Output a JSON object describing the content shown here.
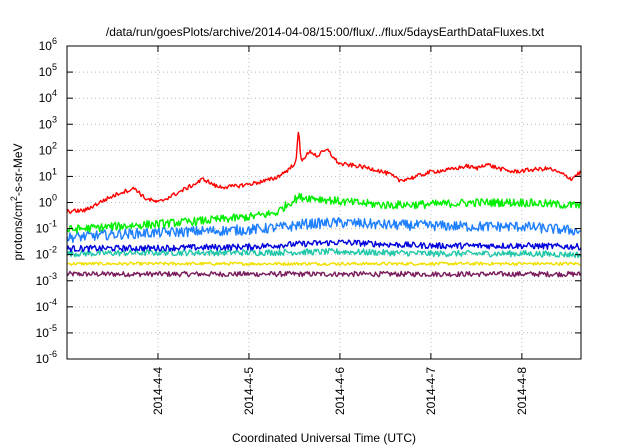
{
  "chart_data": {
    "type": "line",
    "title": "/data/run/goesPlots/archive/2014-04-08/15:00/flux/../flux/5daysEarthDataFluxes.txt",
    "xlabel": "Coordinated Universal Time (UTC)",
    "ylabel_parts": {
      "a": "protons/cm",
      "sup": "2",
      "b": "-s-sr-MeV"
    },
    "y_scale": "log",
    "ylim": [
      1e-06,
      1000000.0
    ],
    "y_ticks": [
      {
        "value": 1e-06,
        "base": "10",
        "exp": "-6"
      },
      {
        "value": 1e-05,
        "base": "10",
        "exp": "-5"
      },
      {
        "value": 0.0001,
        "base": "10",
        "exp": "-4"
      },
      {
        "value": 0.001,
        "base": "10",
        "exp": "-3"
      },
      {
        "value": 0.01,
        "base": "10",
        "exp": "-2"
      },
      {
        "value": 0.1,
        "base": "10",
        "exp": "-1"
      },
      {
        "value": 1.0,
        "base": "10",
        "exp": "0"
      },
      {
        "value": 10.0,
        "base": "10",
        "exp": "1"
      },
      {
        "value": 100.0,
        "base": "10",
        "exp": "2"
      },
      {
        "value": 1000.0,
        "base": "10",
        "exp": "3"
      },
      {
        "value": 10000.0,
        "base": "10",
        "exp": "4"
      },
      {
        "value": 100000.0,
        "base": "10",
        "exp": "5"
      },
      {
        "value": 1000000.0,
        "base": "10",
        "exp": "6"
      }
    ],
    "x_domain_days": [
      3.0,
      8.65
    ],
    "x_ticks": [
      {
        "day": 4,
        "label": "2014-4-4"
      },
      {
        "day": 5,
        "label": "2014-4-5"
      },
      {
        "day": 6,
        "label": "2014-4-6"
      },
      {
        "day": 7,
        "label": "2014-4-7"
      },
      {
        "day": 8,
        "label": "2014-4-8"
      }
    ],
    "grid": true,
    "series": [
      {
        "color": "#ff0000",
        "noise": 0.08,
        "points": [
          [
            3.0,
            0.45
          ],
          [
            3.2,
            0.5
          ],
          [
            3.4,
            1.2
          ],
          [
            3.6,
            2.5
          ],
          [
            3.75,
            3.5
          ],
          [
            3.85,
            1.5
          ],
          [
            4.0,
            1.0
          ],
          [
            4.2,
            2.2
          ],
          [
            4.4,
            5.0
          ],
          [
            4.5,
            8.0
          ],
          [
            4.65,
            4.0
          ],
          [
            4.8,
            4.0
          ],
          [
            5.0,
            5.0
          ],
          [
            5.2,
            7.0
          ],
          [
            5.3,
            9.0
          ],
          [
            5.45,
            20.0
          ],
          [
            5.52,
            40.0
          ],
          [
            5.545,
            700.0
          ],
          [
            5.57,
            40.0
          ],
          [
            5.62,
            60.0
          ],
          [
            5.68,
            90.0
          ],
          [
            5.75,
            60.0
          ],
          [
            5.82,
            90.0
          ],
          [
            5.88,
            100.0
          ],
          [
            5.93,
            50.0
          ],
          [
            6.0,
            30.0
          ],
          [
            6.2,
            25.0
          ],
          [
            6.4,
            18.0
          ],
          [
            6.55,
            12.0
          ],
          [
            6.65,
            7.0
          ],
          [
            6.8,
            9.0
          ],
          [
            7.0,
            15.0
          ],
          [
            7.2,
            18.0
          ],
          [
            7.4,
            25.0
          ],
          [
            7.5,
            20.0
          ],
          [
            7.6,
            30.0
          ],
          [
            7.75,
            20.0
          ],
          [
            7.9,
            15.0
          ],
          [
            8.1,
            18.0
          ],
          [
            8.3,
            20.0
          ],
          [
            8.45,
            12.0
          ],
          [
            8.55,
            8.0
          ],
          [
            8.6,
            12.0
          ],
          [
            8.65,
            14.0
          ]
        ]
      },
      {
        "color": "#00ee00",
        "noise": 0.16,
        "points": [
          [
            3.0,
            0.09
          ],
          [
            3.5,
            0.12
          ],
          [
            4.0,
            0.15
          ],
          [
            4.5,
            0.2
          ],
          [
            5.0,
            0.28
          ],
          [
            5.3,
            0.4
          ],
          [
            5.45,
            1.0
          ],
          [
            5.55,
            1.6
          ],
          [
            5.7,
            1.5
          ],
          [
            6.0,
            1.1
          ],
          [
            6.5,
            0.8
          ],
          [
            7.0,
            0.85
          ],
          [
            7.5,
            1.0
          ],
          [
            8.0,
            1.0
          ],
          [
            8.65,
            0.75
          ]
        ]
      },
      {
        "color": "#1e7fff",
        "noise": 0.2,
        "points": [
          [
            3.0,
            0.045
          ],
          [
            3.5,
            0.06
          ],
          [
            4.0,
            0.07
          ],
          [
            4.5,
            0.08
          ],
          [
            5.0,
            0.09
          ],
          [
            5.45,
            0.12
          ],
          [
            5.6,
            0.15
          ],
          [
            6.0,
            0.17
          ],
          [
            6.5,
            0.14
          ],
          [
            7.0,
            0.13
          ],
          [
            7.5,
            0.12
          ],
          [
            8.0,
            0.12
          ],
          [
            8.65,
            0.08
          ]
        ]
      },
      {
        "color": "#0000dd",
        "noise": 0.12,
        "points": [
          [
            3.0,
            0.017
          ],
          [
            4.0,
            0.018
          ],
          [
            5.0,
            0.02
          ],
          [
            5.5,
            0.025
          ],
          [
            6.0,
            0.03
          ],
          [
            6.5,
            0.025
          ],
          [
            7.0,
            0.022
          ],
          [
            8.0,
            0.022
          ],
          [
            8.65,
            0.02
          ]
        ]
      },
      {
        "color": "#20c8a8",
        "noise": 0.12,
        "points": [
          [
            3.0,
            0.011
          ],
          [
            4.0,
            0.012
          ],
          [
            5.0,
            0.012
          ],
          [
            6.0,
            0.013
          ],
          [
            7.0,
            0.011
          ],
          [
            8.0,
            0.011
          ],
          [
            8.65,
            0.01
          ]
        ]
      },
      {
        "color": "#f0e000",
        "noise": 0.06,
        "points": [
          [
            3.0,
            0.0045
          ],
          [
            8.65,
            0.0045
          ]
        ]
      },
      {
        "color": "#7a1c5c",
        "noise": 0.1,
        "points": [
          [
            3.0,
            0.0018
          ],
          [
            8.65,
            0.0018
          ]
        ]
      }
    ]
  }
}
